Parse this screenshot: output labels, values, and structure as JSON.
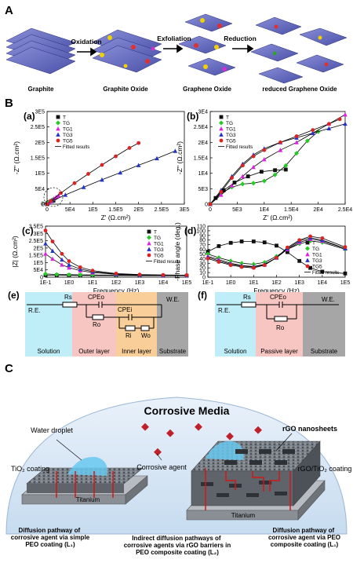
{
  "panels": {
    "A": "A",
    "B": "B",
    "C": "C"
  },
  "sectionA": {
    "stages": [
      "Graphite",
      "Graphite Oxide",
      "Graphene Oxide",
      "reduced Graphene Oxide"
    ],
    "steps": [
      "Oxidation",
      "Exfoliation",
      "Reduction"
    ]
  },
  "legend": {
    "fitted": "Fitted results"
  },
  "chart_data": [
    {
      "id": "a",
      "type": "line",
      "label": "(a)",
      "ylabel": "-Z'' (Ω.cm²)",
      "xlabel": "Z' (Ω.cm²)",
      "xlim": [
        0,
        300000
      ],
      "ylim": [
        0,
        300000
      ],
      "xticks": [
        "0",
        "5E4",
        "1E5",
        "1.5E5",
        "2E5",
        "2.5E5",
        "3E5"
      ],
      "yticks": [
        "0",
        "5E4",
        "1E5",
        "1.5E5",
        "2E5",
        "2.5E5",
        "3E5"
      ],
      "inset_label": "(b)",
      "legend_pos": "top-left",
      "series": [
        {
          "name": "T",
          "color": "#111111",
          "marker": "square",
          "x": [
            0,
            2000,
            5000,
            9000,
            12000,
            14000
          ],
          "y": [
            0,
            4000,
            7000,
            10000,
            11000,
            11500
          ]
        },
        {
          "name": "TG",
          "color": "#22cc22",
          "marker": "diamond",
          "x": [
            0,
            3000,
            7000,
            11000,
            15000,
            20000
          ],
          "y": [
            0,
            5000,
            10000,
            14000,
            17000,
            20000
          ]
        },
        {
          "name": "TG1",
          "color": "#e020e0",
          "marker": "triangle",
          "x": [
            0,
            5000,
            10000,
            15000,
            20000,
            25000
          ],
          "y": [
            0,
            6000,
            12000,
            18000,
            23000,
            28000
          ]
        },
        {
          "name": "TG3",
          "color": "#2233cc",
          "marker": "triangle",
          "x": [
            0,
            10000,
            40000,
            80000,
            120000,
            160000,
            200000,
            240000,
            280000
          ],
          "y": [
            0,
            10000,
            30000,
            55000,
            79000,
            102000,
            126000,
            148000,
            172000
          ]
        },
        {
          "name": "TG5",
          "color": "#dd2222",
          "marker": "circle",
          "x": [
            0,
            8000,
            30000,
            60000,
            90000,
            120000,
            150000,
            180000,
            200000
          ],
          "y": [
            0,
            10000,
            36000,
            68000,
            98000,
            127000,
            155000,
            182000,
            198000
          ]
        }
      ]
    },
    {
      "id": "b",
      "type": "line",
      "label": "(b)",
      "ylabel": "-Z'' (Ω.cm²)",
      "xlabel": "Z' (Ω.cm²)",
      "xlim": [
        0,
        25000
      ],
      "ylim": [
        0,
        30000
      ],
      "xticks": [
        "0",
        "5E3",
        "1E4",
        "1.5E4",
        "2E4",
        "2.5E4"
      ],
      "yticks": [
        "0",
        "5E3",
        "1E4",
        "1.5E4",
        "2E4",
        "2.5E4",
        "3E4"
      ],
      "legend_pos": "top-left",
      "series": [
        {
          "name": "T",
          "color": "#111111",
          "marker": "square",
          "x": [
            0,
            1000,
            2500,
            4500,
            7000,
            9500,
            12000,
            14000
          ],
          "y": [
            0,
            2000,
            4500,
            7000,
            9000,
            10500,
            11000,
            11200
          ]
        },
        {
          "name": "TG",
          "color": "#22cc22",
          "marker": "diamond",
          "x": [
            0,
            2000,
            4000,
            6000,
            8000,
            10000,
            12000,
            14000,
            16000,
            18000,
            20000
          ],
          "y": [
            0,
            3500,
            5500,
            6500,
            6800,
            7500,
            9500,
            12500,
            16500,
            20500,
            23500
          ]
        },
        {
          "name": "TG1",
          "color": "#e020e0",
          "marker": "triangle",
          "x": [
            0,
            2000,
            4000,
            6000,
            8000,
            10000,
            13000,
            16000,
            19000,
            22000,
            25000
          ],
          "y": [
            0,
            3000,
            6000,
            9000,
            12000,
            14500,
            17500,
            20000,
            23000,
            26000,
            29000
          ]
        },
        {
          "name": "TG3",
          "color": "#2233cc",
          "marker": "triangle",
          "x": [
            0,
            2000,
            4000,
            6000,
            8000,
            10000,
            13000,
            16000,
            19000,
            22000,
            25000
          ],
          "y": [
            0,
            4500,
            9000,
            13000,
            16000,
            18000,
            20000,
            21500,
            23000,
            24500,
            26000
          ]
        },
        {
          "name": "TG5",
          "color": "#dd2222",
          "marker": "circle",
          "x": [
            0,
            2000,
            4000,
            6000,
            8000,
            10000,
            13000,
            16000,
            19000,
            22000,
            24000
          ],
          "y": [
            0,
            4000,
            8500,
            12500,
            15500,
            17500,
            20000,
            22000,
            24000,
            26000,
            27500
          ]
        }
      ]
    },
    {
      "id": "c",
      "type": "line",
      "label": "(c)",
      "ylabel": "|Z| (Ω.cm²)",
      "xlabel": "Frequency (Hz)",
      "xscale": "log",
      "xlim": [
        0.1,
        100000
      ],
      "ylim": [
        0,
        350000
      ],
      "xticks": [
        "1E-1",
        "1E0",
        "1E1",
        "1E2",
        "1E3",
        "1E4",
        "1E5"
      ],
      "yticks": [
        "0",
        "5E4",
        "1E5",
        "1.5E5",
        "2E5",
        "2.5E5",
        "3E5",
        "3.5E5"
      ],
      "legend_pos": "top-right",
      "series": [
        {
          "name": "T",
          "color": "#111111",
          "marker": "square",
          "x": [
            0.1,
            0.3,
            1,
            3,
            10,
            100,
            1000,
            10000,
            100000
          ],
          "y": [
            14000,
            13000,
            12500,
            12000,
            11500,
            11000,
            10500,
            10000,
            10000
          ]
        },
        {
          "name": "TG",
          "color": "#22cc22",
          "marker": "diamond",
          "x": [
            0.1,
            0.3,
            1,
            3,
            10,
            100,
            1000,
            10000,
            100000
          ],
          "y": [
            22000,
            19000,
            17000,
            16000,
            15000,
            14000,
            13000,
            12500,
            12000
          ]
        },
        {
          "name": "TG1",
          "color": "#e020e0",
          "marker": "triangle",
          "x": [
            0.1,
            0.2,
            0.5,
            1,
            3,
            10,
            100,
            1000,
            10000,
            100000
          ],
          "y": [
            160000,
            125000,
            85000,
            65000,
            45000,
            32000,
            20000,
            15000,
            13000,
            12000
          ]
        },
        {
          "name": "TG3",
          "color": "#2233cc",
          "marker": "triangle",
          "x": [
            0.1,
            0.2,
            0.5,
            1,
            3,
            10,
            100,
            1000,
            10000,
            100000
          ],
          "y": [
            230000,
            180000,
            120000,
            85000,
            55000,
            38000,
            22000,
            16000,
            14000,
            13000
          ]
        },
        {
          "name": "TG5",
          "color": "#dd2222",
          "marker": "circle",
          "x": [
            0.1,
            0.2,
            0.5,
            1,
            3,
            10,
            100,
            1000,
            10000,
            100000
          ],
          "y": [
            320000,
            245000,
            160000,
            110000,
            68000,
            45000,
            25000,
            18000,
            15000,
            14000
          ]
        }
      ]
    },
    {
      "id": "d",
      "type": "line",
      "label": "(d)",
      "ylabel": "-Phase angle (deg.)",
      "xlabel": "Frequency (Hz)",
      "xscale": "log",
      "xlim": [
        0.1,
        100000
      ],
      "ylim": [
        0,
        110
      ],
      "xticks": [
        "1E-1",
        "1E0",
        "1E1",
        "1E2",
        "1E3",
        "1E4",
        "1E5"
      ],
      "yticks": [
        "0",
        "10",
        "20",
        "30",
        "40",
        "50",
        "60",
        "70",
        "80",
        "90",
        "100",
        "110"
      ],
      "legend_pos": "bottom-right",
      "series": [
        {
          "name": "T",
          "color": "#111111",
          "marker": "square",
          "x": [
            0.1,
            0.3,
            1,
            3,
            10,
            30,
            100,
            300,
            1000,
            3000,
            10000,
            100000
          ],
          "y": [
            55,
            67,
            74,
            77,
            77,
            75,
            68,
            54,
            35,
            20,
            12,
            8
          ]
        },
        {
          "name": "TG",
          "color": "#22cc22",
          "marker": "diamond",
          "x": [
            0.1,
            0.3,
            1,
            3,
            10,
            30,
            100,
            300,
            1000,
            3000,
            10000,
            100000
          ],
          "y": [
            50,
            42,
            35,
            30,
            28,
            32,
            45,
            60,
            72,
            78,
            75,
            60
          ]
        },
        {
          "name": "TG1",
          "color": "#e020e0",
          "marker": "triangle",
          "x": [
            0.1,
            0.3,
            1,
            3,
            10,
            30,
            100,
            300,
            1000,
            3000,
            10000,
            100000
          ],
          "y": [
            45,
            38,
            30,
            25,
            23,
            28,
            42,
            60,
            75,
            82,
            78,
            62
          ]
        },
        {
          "name": "TG3",
          "color": "#2233cc",
          "marker": "triangle",
          "x": [
            0.1,
            0.3,
            1,
            3,
            10,
            30,
            100,
            300,
            1000,
            3000,
            10000,
            100000
          ],
          "y": [
            43,
            35,
            28,
            24,
            22,
            27,
            42,
            62,
            78,
            85,
            80,
            62
          ]
        },
        {
          "name": "TG5",
          "color": "#dd2222",
          "marker": "circle",
          "x": [
            0.1,
            0.3,
            1,
            3,
            10,
            30,
            100,
            300,
            1000,
            3000,
            10000,
            100000
          ],
          "y": [
            40,
            33,
            26,
            22,
            20,
            26,
            42,
            64,
            80,
            88,
            84,
            65
          ]
        }
      ]
    }
  ],
  "circuits": {
    "e": {
      "label": "(e)",
      "RE": "R.E.",
      "WE": "W.E.",
      "Rs": "Rs",
      "CPEo": "CPEo",
      "Ro": "Ro",
      "CPEi": "CPEi",
      "Ri": "Ri",
      "Wo": "Wo",
      "regions": [
        "Solution",
        "Outer layer",
        "Inner layer",
        "Substrate"
      ]
    },
    "f": {
      "label": "(f)",
      "RE": "R.E.",
      "WE": "W.E.",
      "Rs": "Rs",
      "CPEo": "CPEo",
      "Ro": "Ro",
      "regions": [
        "Solution",
        "Passive layer",
        "Substrate"
      ]
    }
  },
  "sectionC": {
    "title": "Corrosive Media",
    "water": "Water droplet",
    "agent": "Corrosive agent",
    "rgo": "rGO nanosheets",
    "tio2": "TiO₂ coating",
    "titanium_left": "Titanium",
    "titanium_right": "Titanium",
    "composite": "rGO/TiO₂ coating",
    "caption_left": "Diffusion pathway of corrosive agent via simple PEO coating (L₁)",
    "caption_mid": "Indirect diffusion pathways of corrosive agents via rGO barriers in PEO composite coating (L₂)",
    "caption_right": "Diffusion pathway of corrosive agent via PEO composite coating (L₁)"
  }
}
